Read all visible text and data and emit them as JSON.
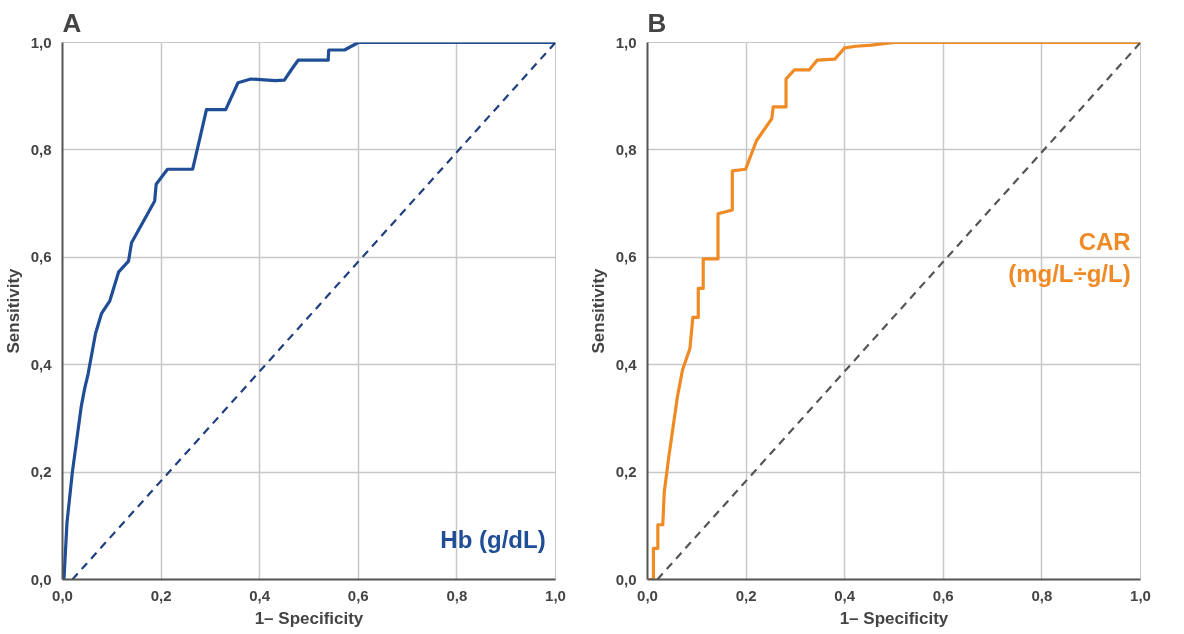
{
  "chart_data": [
    {
      "type": "line",
      "title": "A",
      "xlabel": "1– Specificity",
      "ylabel": "Sensitivity",
      "xlim": [
        0,
        1
      ],
      "ylim": [
        0,
        1
      ],
      "xticks": [
        {
          "value": 0,
          "label": "0,0"
        },
        {
          "value": 0.2,
          "label": "0,2"
        },
        {
          "value": 0.4,
          "label": "0,4"
        },
        {
          "value": 0.6,
          "label": "0,6"
        },
        {
          "value": 0.8,
          "label": "0,8"
        },
        {
          "value": 1,
          "label": "1,0"
        }
      ],
      "yticks": [
        {
          "value": 0,
          "label": "0,0"
        },
        {
          "value": 0.2,
          "label": "0,2"
        },
        {
          "value": 0.4,
          "label": "0,4"
        },
        {
          "value": 0.6,
          "label": "0,6"
        },
        {
          "value": 0.8,
          "label": "0,8"
        },
        {
          "value": 1,
          "label": "1,0"
        }
      ],
      "grid": true,
      "legend": "bottom right",
      "series": [
        {
          "name": "Hb (g/dL)",
          "color": "#1f4e96",
          "line_style": "solid",
          "x": [
            0.003,
            0.009,
            0.02,
            0.029,
            0.038,
            0.045,
            0.052,
            0.067,
            0.079,
            0.096,
            0.114,
            0.134,
            0.14,
            0.187,
            0.19,
            0.213,
            0.264,
            0.28,
            0.292,
            0.331,
            0.356,
            0.382,
            0.431,
            0.45,
            0.467,
            0.478,
            0.539,
            0.54,
            0.572,
            0.6,
            0.73,
            1.0
          ],
          "values": [
            0,
            0.105,
            0.2,
            0.261,
            0.322,
            0.356,
            0.383,
            0.458,
            0.495,
            0.519,
            0.573,
            0.593,
            0.627,
            0.705,
            0.736,
            0.764,
            0.764,
            0.827,
            0.875,
            0.875,
            0.925,
            0.932,
            0.929,
            0.93,
            0.953,
            0.967,
            0.967,
            0.986,
            0.986,
            1.0,
            1.0,
            1.0
          ]
        },
        {
          "color": "#1f3f7f",
          "line_style": "dashed",
          "x": [
            0.02,
            1.0
          ],
          "values": [
            0,
            1.0
          ]
        }
      ]
    },
    {
      "type": "line",
      "title": "B",
      "xlabel": "1– Specificity",
      "ylabel": "Sensitivity",
      "xlim": [
        0,
        1
      ],
      "ylim": [
        0,
        1
      ],
      "xticks": [
        {
          "value": 0,
          "label": "0,0"
        },
        {
          "value": 0.2,
          "label": "0,2"
        },
        {
          "value": 0.4,
          "label": "0,4"
        },
        {
          "value": 0.6,
          "label": "0,6"
        },
        {
          "value": 0.8,
          "label": "0,8"
        },
        {
          "value": 1,
          "label": "1,0"
        }
      ],
      "yticks": [
        {
          "value": 0,
          "label": "0,0"
        },
        {
          "value": 0.2,
          "label": "0,2"
        },
        {
          "value": 0.4,
          "label": "0,4"
        },
        {
          "value": 0.6,
          "label": "0,6"
        },
        {
          "value": 0.8,
          "label": "0,8"
        },
        {
          "value": 1,
          "label": "1,0"
        }
      ],
      "grid": true,
      "legend": "right",
      "series": [
        {
          "name": "CAR\n(mg/L÷g/L)",
          "color": "#f08a24",
          "line_style": "solid",
          "x": [
            0.003,
            0.012,
            0.012,
            0.021,
            0.021,
            0.031,
            0.034,
            0.043,
            0.052,
            0.061,
            0.071,
            0.086,
            0.092,
            0.103,
            0.103,
            0.113,
            0.113,
            0.143,
            0.143,
            0.172,
            0.172,
            0.199,
            0.221,
            0.252,
            0.255,
            0.281,
            0.281,
            0.298,
            0.328,
            0.344,
            0.38,
            0.4,
            0.423,
            0.454,
            0.5,
            1.0
          ],
          "values": [
            0,
            0,
            0.058,
            0.058,
            0.102,
            0.102,
            0.163,
            0.227,
            0.285,
            0.342,
            0.39,
            0.43,
            0.488,
            0.488,
            0.542,
            0.542,
            0.597,
            0.597,
            0.681,
            0.688,
            0.761,
            0.764,
            0.817,
            0.858,
            0.88,
            0.88,
            0.932,
            0.949,
            0.949,
            0.967,
            0.969,
            0.99,
            0.993,
            0.995,
            1.0,
            1.0
          ]
        },
        {
          "color": "#555555",
          "line_style": "dashed",
          "x": [
            0.02,
            1.0
          ],
          "values": [
            0,
            1.0
          ]
        }
      ]
    }
  ]
}
